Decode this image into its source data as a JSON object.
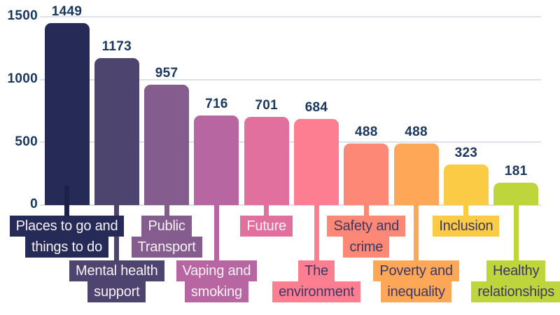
{
  "chart_data": {
    "type": "bar",
    "title": "",
    "xlabel": "",
    "ylabel": "",
    "categories": [
      "Places to go and things to do",
      "Mental health support",
      "Public Transport",
      "Vaping and smoking",
      "Future",
      "The environment",
      "Safety and crime",
      "Poverty and inequality",
      "Inclusion",
      "Healthy relationships"
    ],
    "values": [
      1449,
      1173,
      957,
      716,
      701,
      684,
      488,
      488,
      323,
      181
    ],
    "ylim": [
      0,
      1500
    ],
    "yticks": [
      0,
      500,
      1000,
      1500
    ],
    "grid": true,
    "legend": false,
    "bar_colors": [
      "#262a57",
      "#4d4470",
      "#855c8e",
      "#b866a1",
      "#e1709f",
      "#fd7e91",
      "#fd8876",
      "#fda757",
      "#fccb45",
      "#bed63c"
    ]
  },
  "axis": {
    "yticks": [
      "1500",
      "1000",
      "500",
      "0"
    ]
  },
  "colors": {
    "value_text": "#1a3760",
    "grid": "#dde1e9",
    "light_label_text": "#f7f1f7",
    "dark_label_text": "#3c3763",
    "bar1_inner_stem": "#1d2147"
  },
  "bars": [
    {
      "value_label": "1449",
      "category_display": "Places to go and\nthings to do",
      "color": "#262a57",
      "text_color": "#f7f1f7",
      "row": 1,
      "stem_color": "#1d2147"
    },
    {
      "value_label": "1173",
      "category_display": "Mental health\nsupport",
      "color": "#4d4470",
      "text_color": "#f7f1f7",
      "row": 2
    },
    {
      "value_label": "957",
      "category_display": "Public\nTransport",
      "color": "#855c8e",
      "text_color": "#f7f1f7",
      "row": 1
    },
    {
      "value_label": "716",
      "category_display": "Vaping and\nsmoking",
      "color": "#b866a1",
      "text_color": "#f7f1f7",
      "row": 2
    },
    {
      "value_label": "701",
      "category_display": "Future",
      "color": "#e1709f",
      "text_color": "#f7f1f7",
      "row": 1
    },
    {
      "value_label": "684",
      "category_display": "The\nenvironment",
      "color": "#fd7e91",
      "text_color": "#3c3763",
      "row": 2
    },
    {
      "value_label": "488",
      "category_display": "Safety and\ncrime",
      "color": "#fd8876",
      "text_color": "#3c3763",
      "row": 1
    },
    {
      "value_label": "488",
      "category_display": "Poverty and\ninequality",
      "color": "#fda757",
      "text_color": "#3c3763",
      "row": 2
    },
    {
      "value_label": "323",
      "category_display": "Inclusion",
      "color": "#fccb45",
      "text_color": "#3c3763",
      "row": 1
    },
    {
      "value_label": "181",
      "category_display": "Healthy\nrelationships",
      "color": "#bed63c",
      "text_color": "#3c3763",
      "row": 2
    }
  ]
}
